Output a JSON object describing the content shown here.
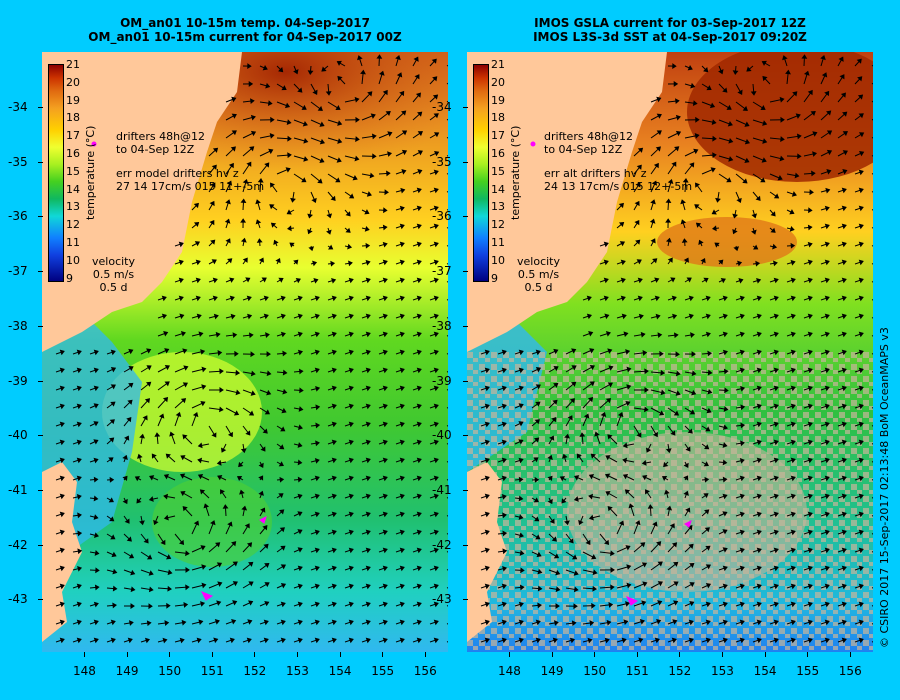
{
  "left_panel": {
    "title_line1": "OM_an01 10-15m temp. 04-Sep-2017",
    "title_line2": "OM_an01 10-15m current for 04-Sep-2017 00Z",
    "drifters_line1": "drifters 48h@12",
    "drifters_line2": "to 04-Sep 12Z",
    "err_line1": "err model drifters hv z",
    "err_line2": "27 14 17cm/s 015 11+-5m"
  },
  "right_panel": {
    "title_line1": "IMOS GSLA current for 03-Sep-2017 12Z",
    "title_line2": "IMOS L3S-3d SST at 04-Sep-2017 09:20Z",
    "drifters_line1": "drifters 48h@12",
    "drifters_line2": "to 04-Sep 12Z",
    "err_line1": "err alt drifters hv z",
    "err_line2": "24 13 17cm/s 015 12+-5m"
  },
  "colorbar": {
    "title": "temperature (°C)",
    "labels": [
      "21",
      "20",
      "19",
      "18",
      "17",
      "16",
      "15",
      "14",
      "13",
      "12",
      "11",
      "10",
      "9"
    ]
  },
  "velocity": {
    "label": "velocity",
    "scale": "0.5 m/s",
    "time": "0.5 d"
  },
  "lat_labels": [
    "-34",
    "-35",
    "-36",
    "-37",
    "-38",
    "-39",
    "-40",
    "-41",
    "-42",
    "-43"
  ],
  "lon_labels": [
    "148",
    "149",
    "150",
    "151",
    "152",
    "153",
    "154",
    "155",
    "156"
  ],
  "credit": "© CSIRO 2017   15-Sep-2017 02:13:48 BoM OceanMAPS v3",
  "colors": {
    "background": "#00ccff",
    "land": "#ffc89a",
    "no_data": "#c8b49a",
    "drifter": "#ff00ff"
  }
}
